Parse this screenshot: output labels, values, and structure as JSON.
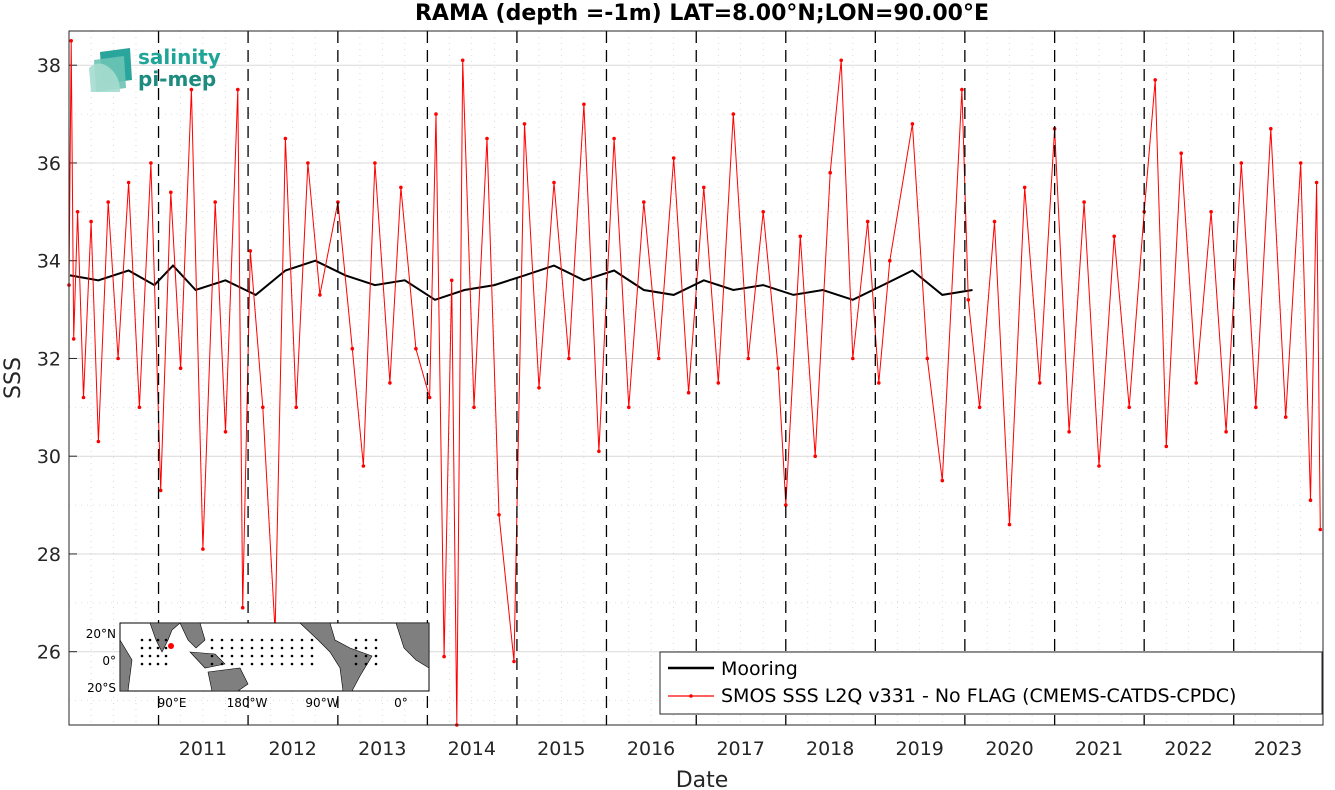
{
  "chart_data": {
    "type": "line",
    "title": "RAMA (depth =-1m) LAT=8.00°N;LON=90.00°E",
    "xlabel": "Date",
    "ylabel": "SSS",
    "xlim": [
      "2010-01-01",
      "2023-12-31"
    ],
    "ylim": [
      24.5,
      38.7
    ],
    "yticks": [
      26,
      28,
      30,
      32,
      34,
      36,
      38
    ],
    "xticks": [
      "2011",
      "2012",
      "2013",
      "2014",
      "2015",
      "2016",
      "2017",
      "2018",
      "2019",
      "2020",
      "2021",
      "2022",
      "2023"
    ],
    "year_boundaries": [
      2011,
      2012,
      2013,
      2014,
      2015,
      2016,
      2017,
      2018,
      2019,
      2020,
      2021,
      2022,
      2023
    ],
    "grid": true,
    "legend_position": "bottom-right",
    "series": [
      {
        "name": "Mooring",
        "color": "#000000",
        "points": [
          [
            "2010-01-05",
            33.7
          ],
          [
            "2010-05-01",
            33.6
          ],
          [
            "2010-09-01",
            33.8
          ],
          [
            "2010-12-15",
            33.5
          ],
          [
            "2011-03-01",
            33.9
          ],
          [
            "2011-06-01",
            33.4
          ],
          [
            "2011-10-01",
            33.6
          ],
          [
            "2012-02-01",
            33.3
          ],
          [
            "2012-06-01",
            33.8
          ],
          [
            "2012-10-01",
            34.0
          ],
          [
            "2013-02-01",
            33.7
          ],
          [
            "2013-06-01",
            33.5
          ],
          [
            "2013-10-01",
            33.6
          ],
          [
            "2014-02-01",
            33.2
          ],
          [
            "2014-06-01",
            33.4
          ],
          [
            "2014-10-01",
            33.5
          ],
          [
            "2015-02-01",
            33.7
          ],
          [
            "2015-06-01",
            33.9
          ],
          [
            "2015-10-01",
            33.6
          ],
          [
            "2016-02-01",
            33.8
          ],
          [
            "2016-06-01",
            33.4
          ],
          [
            "2016-10-01",
            33.3
          ],
          [
            "2017-02-01",
            33.6
          ],
          [
            "2017-06-01",
            33.4
          ],
          [
            "2017-10-01",
            33.5
          ],
          [
            "2018-02-01",
            33.3
          ],
          [
            "2018-06-01",
            33.4
          ],
          [
            "2018-10-01",
            33.2
          ],
          [
            "2019-02-01",
            33.5
          ],
          [
            "2019-06-01",
            33.8
          ],
          [
            "2019-10-01",
            33.3
          ],
          [
            "2020-02-01",
            33.4
          ]
        ]
      },
      {
        "name": "SMOS SSS L2Q v331 - No FLAG  (CMEMS-CATDS-CPDC)",
        "color": "#ff0000",
        "points": [
          [
            "2010-01-01",
            33.5
          ],
          [
            "2010-01-10",
            38.5
          ],
          [
            "2010-01-20",
            32.4
          ],
          [
            "2010-02-05",
            35.0
          ],
          [
            "2010-03-01",
            31.2
          ],
          [
            "2010-04-01",
            34.8
          ],
          [
            "2010-05-01",
            30.3
          ],
          [
            "2010-06-10",
            35.2
          ],
          [
            "2010-07-20",
            32.0
          ],
          [
            "2010-09-01",
            35.6
          ],
          [
            "2010-10-15",
            31.0
          ],
          [
            "2010-12-01",
            36.0
          ],
          [
            "2011-01-10",
            29.3
          ],
          [
            "2011-02-20",
            35.4
          ],
          [
            "2011-04-01",
            31.8
          ],
          [
            "2011-05-15",
            37.5
          ],
          [
            "2011-07-01",
            28.1
          ],
          [
            "2011-08-20",
            35.2
          ],
          [
            "2011-10-01",
            30.5
          ],
          [
            "2011-11-20",
            37.5
          ],
          [
            "2011-12-10",
            26.9
          ],
          [
            "2012-01-10",
            34.2
          ],
          [
            "2012-03-01",
            31.0
          ],
          [
            "2012-04-20",
            26.4
          ],
          [
            "2012-06-01",
            36.5
          ],
          [
            "2012-07-15",
            31.0
          ],
          [
            "2012-09-01",
            36.0
          ],
          [
            "2012-10-20",
            33.3
          ],
          [
            "2013-01-01",
            35.2
          ],
          [
            "2013-03-01",
            32.2
          ],
          [
            "2013-04-15",
            29.8
          ],
          [
            "2013-06-01",
            36.0
          ],
          [
            "2013-08-01",
            31.5
          ],
          [
            "2013-09-15",
            35.5
          ],
          [
            "2013-11-15",
            32.2
          ],
          [
            "2014-01-10",
            31.2
          ],
          [
            "2014-02-05",
            37.0
          ],
          [
            "2014-03-10",
            25.9
          ],
          [
            "2014-04-10",
            33.6
          ],
          [
            "2014-05-01",
            24.5
          ],
          [
            "2014-05-25",
            38.1
          ],
          [
            "2014-07-10",
            31.0
          ],
          [
            "2014-09-01",
            36.5
          ],
          [
            "2014-10-20",
            28.8
          ],
          [
            "2014-12-20",
            25.8
          ],
          [
            "2015-02-01",
            36.8
          ],
          [
            "2015-04-01",
            31.4
          ],
          [
            "2015-06-01",
            35.6
          ],
          [
            "2015-08-01",
            32.0
          ],
          [
            "2015-10-01",
            37.2
          ],
          [
            "2015-12-01",
            30.1
          ],
          [
            "2016-02-01",
            36.5
          ],
          [
            "2016-04-01",
            31.0
          ],
          [
            "2016-06-01",
            35.2
          ],
          [
            "2016-08-01",
            32.0
          ],
          [
            "2016-10-01",
            36.1
          ],
          [
            "2016-12-01",
            31.3
          ],
          [
            "2017-02-01",
            35.5
          ],
          [
            "2017-04-01",
            31.5
          ],
          [
            "2017-06-01",
            37.0
          ],
          [
            "2017-08-01",
            32.0
          ],
          [
            "2017-10-01",
            35.0
          ],
          [
            "2017-12-01",
            31.8
          ],
          [
            "2018-01-01",
            29.0
          ],
          [
            "2018-03-01",
            34.5
          ],
          [
            "2018-05-01",
            30.0
          ],
          [
            "2018-07-01",
            35.8
          ],
          [
            "2018-08-15",
            38.1
          ],
          [
            "2018-10-01",
            32.0
          ],
          [
            "2018-12-01",
            34.8
          ],
          [
            "2019-01-15",
            31.5
          ],
          [
            "2019-03-01",
            34.0
          ],
          [
            "2019-06-01",
            36.8
          ],
          [
            "2019-08-01",
            32.0
          ],
          [
            "2019-10-01",
            29.5
          ],
          [
            "2019-12-20",
            37.5
          ],
          [
            "2020-01-15",
            33.2
          ],
          [
            "2020-03-01",
            31.0
          ],
          [
            "2020-05-01",
            34.8
          ],
          [
            "2020-07-01",
            28.6
          ],
          [
            "2020-09-01",
            35.5
          ],
          [
            "2020-11-01",
            31.5
          ],
          [
            "2021-01-01",
            36.7
          ],
          [
            "2021-03-01",
            30.5
          ],
          [
            "2021-05-01",
            35.2
          ],
          [
            "2021-07-01",
            29.8
          ],
          [
            "2021-09-01",
            34.5
          ],
          [
            "2021-11-01",
            31.0
          ],
          [
            "2022-01-01",
            35.0
          ],
          [
            "2022-02-15",
            37.7
          ],
          [
            "2022-04-01",
            30.2
          ],
          [
            "2022-06-01",
            36.2
          ],
          [
            "2022-08-01",
            31.5
          ],
          [
            "2022-10-01",
            35.0
          ],
          [
            "2022-12-01",
            30.5
          ],
          [
            "2023-02-01",
            36.0
          ],
          [
            "2023-04-01",
            31.0
          ],
          [
            "2023-06-01",
            36.7
          ],
          [
            "2023-08-01",
            30.8
          ],
          [
            "2023-10-01",
            36.0
          ],
          [
            "2023-11-10",
            29.1
          ],
          [
            "2023-12-05",
            35.6
          ],
          [
            "2023-12-20",
            28.5
          ]
        ]
      }
    ]
  },
  "logo": {
    "line1": "salinity",
    "line2": "pi-mep"
  },
  "inset_map": {
    "lat_ticks": [
      "20°N",
      "0°",
      "20°S"
    ],
    "lon_ticks": [
      "90°E",
      "180°W",
      "90°W",
      "0°"
    ],
    "marker_color": "#ff0000"
  }
}
